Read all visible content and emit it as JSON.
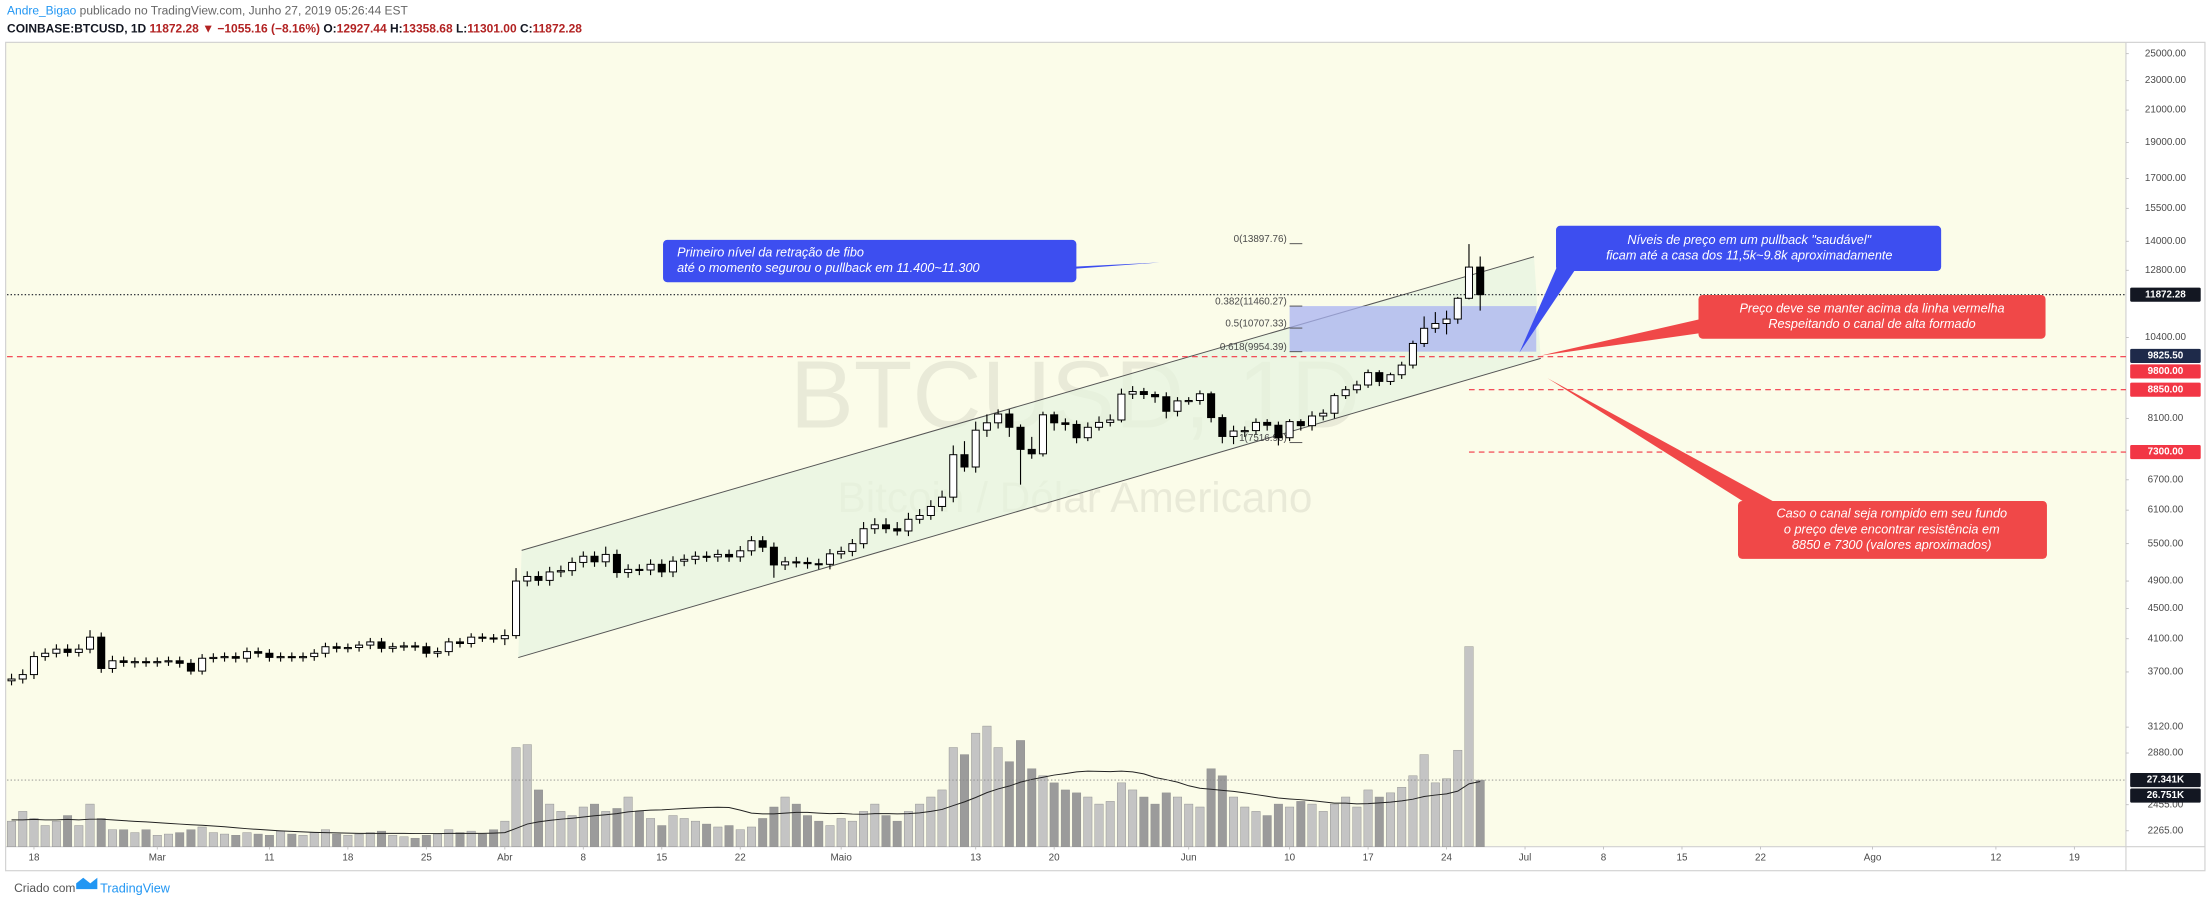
{
  "header": {
    "author": "Andre_Bigao",
    "published": "publicado no TradingView.com, Junho 27, 2019 05:26:44 EST",
    "symbol": "COINBASE:BTCUSD, 1D",
    "last": "11872.28",
    "change": "▼ −1055.16 (−8.16%)",
    "ohlc": [
      {
        "label": "O:",
        "value": "12927.44"
      },
      {
        "label": "H:",
        "value": "13358.68"
      },
      {
        "label": "L:",
        "value": "11301.00"
      },
      {
        "label": "C:",
        "value": "11872.28"
      }
    ]
  },
  "footer": {
    "created_with": "Criado com",
    "brand": "TradingView"
  },
  "chart_data": {
    "type": "candlestick",
    "log_scale": true,
    "grid": false,
    "watermark": {
      "title": "BTCUSD, 1D",
      "subtitle": "Bitcoin / Dólar Americano"
    },
    "up_color": "#ffffff",
    "down_color": "#000000",
    "outline_color": "#000000",
    "xlim": [
      -0.4,
      188.6
    ],
    "xticks": [
      {
        "value": 2,
        "label": "18"
      },
      {
        "value": 13,
        "label": "Mar"
      },
      {
        "value": 23,
        "label": "11"
      },
      {
        "value": 30,
        "label": "18"
      },
      {
        "value": 37,
        "label": "25"
      },
      {
        "value": 44,
        "label": "Abr"
      },
      {
        "value": 51,
        "label": "8"
      },
      {
        "value": 58,
        "label": "15"
      },
      {
        "value": 65,
        "label": "22"
      },
      {
        "value": 74,
        "label": "Maio"
      },
      {
        "value": 86,
        "label": "13"
      },
      {
        "value": 93,
        "label": "20"
      },
      {
        "value": 105,
        "label": "Jun"
      },
      {
        "value": 114,
        "label": "10"
      },
      {
        "value": 121,
        "label": "17"
      },
      {
        "value": 128,
        "label": "24"
      },
      {
        "value": 135,
        "label": "Jul"
      },
      {
        "value": 142,
        "label": "8"
      },
      {
        "value": 149,
        "label": "15"
      },
      {
        "value": 156,
        "label": "22"
      },
      {
        "value": 166,
        "label": "Ago"
      },
      {
        "value": 177,
        "label": "12"
      },
      {
        "value": 184,
        "label": "19"
      }
    ],
    "ylim": [
      2156,
      25890
    ],
    "yticks": [
      {
        "value": 25000,
        "label": "25000.00"
      },
      {
        "value": 23000,
        "label": "23000.00"
      },
      {
        "value": 21000,
        "label": "21000.00"
      },
      {
        "value": 19000,
        "label": "19000.00"
      },
      {
        "value": 17000,
        "label": "17000.00"
      },
      {
        "value": 15500,
        "label": "15500.00"
      },
      {
        "value": 14000,
        "label": "14000.00"
      },
      {
        "value": 12800,
        "label": "12800.00"
      },
      {
        "value": 10400,
        "label": "10400.00"
      },
      {
        "value": 8100,
        "label": "8100.00"
      },
      {
        "value": 6700,
        "label": "6700.00"
      },
      {
        "value": 6100,
        "label": "6100.00"
      },
      {
        "value": 5500,
        "label": "5500.00"
      },
      {
        "value": 4900,
        "label": "4900.00"
      },
      {
        "value": 4500,
        "label": "4500.00"
      },
      {
        "value": 4100,
        "label": "4100.00"
      },
      {
        "value": 3700,
        "label": "3700.00"
      },
      {
        "value": 3120,
        "label": "3120.00"
      },
      {
        "value": 2880,
        "label": "2880.00"
      },
      {
        "value": 2455,
        "label": "2455.00"
      },
      {
        "value": 2265,
        "label": "2265.00"
      }
    ],
    "open": [
      3600,
      3620,
      3670,
      3880,
      3920,
      3970,
      3930,
      3970,
      4120,
      3740,
      3830,
      3810,
      3820,
      3810,
      3820,
      3830,
      3800,
      3710,
      3860,
      3870,
      3880,
      3860,
      3940,
      3920,
      3870,
      3880,
      3870,
      3880,
      3920,
      4000,
      3980,
      3990,
      4020,
      4060,
      3980,
      4000,
      4010,
      4000,
      3920,
      3940,
      4060,
      4040,
      4120,
      4110,
      4100,
      4140,
      4900,
      4970,
      4910,
      5040,
      5060,
      5190,
      5290,
      5200,
      5320,
      5030,
      5080,
      5070,
      5160,
      5040,
      5210,
      5240,
      5290,
      5280,
      5320,
      5280,
      5380,
      5550,
      5440,
      5150,
      5200,
      5190,
      5170,
      5160,
      5330,
      5370,
      5500,
      5760,
      5830,
      5760,
      5720,
      5930,
      6000,
      6170,
      6350,
      7240,
      6970,
      7810,
      7990,
      8210,
      7880,
      7360,
      7260,
      8190,
      7990,
      7950,
      7630,
      7880,
      8000,
      8060,
      8730,
      8800,
      8720,
      8660,
      8280,
      8550,
      8560,
      8740,
      8120,
      7660,
      7790,
      7800,
      8000,
      7930,
      7630,
      8020,
      7920,
      8160,
      8230,
      8690,
      8850,
      8980,
      9330,
      9080,
      9270,
      9550,
      10210,
      10700,
      10860,
      11010,
      11740,
      12927.44
    ],
    "high": [
      3680,
      3730,
      3940,
      3980,
      4030,
      4030,
      4030,
      4210,
      4180,
      3890,
      3880,
      3870,
      3870,
      3870,
      3880,
      3880,
      3850,
      3910,
      3920,
      3930,
      3930,
      3990,
      3990,
      3970,
      3930,
      3930,
      3930,
      3970,
      4050,
      4050,
      4040,
      4070,
      4110,
      4110,
      4050,
      4060,
      4060,
      4050,
      3990,
      4110,
      4110,
      4170,
      4170,
      4160,
      4220,
      5100,
      5050,
      5050,
      5120,
      5140,
      5270,
      5370,
      5370,
      5450,
      5400,
      5160,
      5160,
      5240,
      5240,
      5290,
      5320,
      5370,
      5370,
      5400,
      5400,
      5460,
      5630,
      5630,
      5520,
      5280,
      5280,
      5270,
      5250,
      5410,
      5450,
      5580,
      5880,
      5950,
      5950,
      5880,
      6050,
      6120,
      6290,
      6480,
      7450,
      7550,
      8020,
      8200,
      8330,
      8330,
      7950,
      7650,
      8270,
      8270,
      8100,
      8050,
      8000,
      8150,
      8200,
      8880,
      8950,
      8900,
      8800,
      8780,
      8650,
      8650,
      8830,
      8800,
      8200,
      7920,
      7900,
      8100,
      8080,
      8020,
      8080,
      8080,
      8280,
      8330,
      8750,
      8950,
      9100,
      9420,
      9400,
      9330,
      9650,
      10300,
      11100,
      11250,
      11300,
      11790,
      13880,
      13358.68
    ],
    "low": [
      3550,
      3570,
      3620,
      3830,
      3870,
      3880,
      3880,
      3920,
      3690,
      3690,
      3760,
      3750,
      3760,
      3760,
      3770,
      3750,
      3670,
      3670,
      3810,
      3820,
      3810,
      3810,
      3870,
      3820,
      3820,
      3820,
      3820,
      3830,
      3870,
      3930,
      3930,
      3940,
      3970,
      3930,
      3930,
      3950,
      3950,
      3870,
      3870,
      3890,
      3990,
      3990,
      4060,
      4050,
      4020,
      4100,
      4820,
      4830,
      4830,
      4960,
      4980,
      5110,
      5120,
      5120,
      4950,
      4950,
      4990,
      4990,
      4960,
      4960,
      5130,
      5160,
      5200,
      5200,
      5200,
      5200,
      5300,
      5360,
      4950,
      5070,
      5110,
      5090,
      5080,
      5080,
      5250,
      5290,
      5420,
      5670,
      5680,
      5640,
      5630,
      5850,
      5920,
      6080,
      6250,
      6870,
      6850,
      7650,
      7850,
      7650,
      6600,
      7150,
      7200,
      7800,
      7800,
      7500,
      7550,
      7800,
      7900,
      8000,
      8600,
      8600,
      8500,
      8100,
      8150,
      8450,
      8450,
      8000,
      7500,
      7480,
      7650,
      7700,
      7800,
      7450,
      7550,
      7800,
      7800,
      8050,
      8100,
      8600,
      8750,
      8900,
      8950,
      8980,
      9150,
      9450,
      10100,
      10550,
      10500,
      10850,
      11700,
      11301
    ],
    "close": [
      3620,
      3670,
      3880,
      3920,
      3970,
      3930,
      3970,
      4120,
      3740,
      3830,
      3810,
      3820,
      3810,
      3820,
      3830,
      3800,
      3710,
      3860,
      3870,
      3880,
      3860,
      3940,
      3920,
      3870,
      3880,
      3870,
      3880,
      3920,
      4000,
      3980,
      3990,
      4020,
      4060,
      3980,
      4000,
      4010,
      4000,
      3920,
      3940,
      4060,
      4040,
      4120,
      4110,
      4100,
      4140,
      4900,
      4970,
      4910,
      5040,
      5060,
      5190,
      5290,
      5200,
      5320,
      5030,
      5080,
      5070,
      5160,
      5040,
      5210,
      5240,
      5290,
      5280,
      5320,
      5280,
      5380,
      5550,
      5440,
      5150,
      5200,
      5190,
      5170,
      5160,
      5330,
      5370,
      5500,
      5760,
      5830,
      5760,
      5720,
      5930,
      6000,
      6170,
      6350,
      7240,
      6970,
      7810,
      7990,
      8210,
      7880,
      7360,
      7260,
      8190,
      7990,
      7950,
      7630,
      7880,
      8000,
      8060,
      8730,
      8800,
      8720,
      8660,
      8280,
      8550,
      8560,
      8740,
      8120,
      7660,
      7790,
      7800,
      8000,
      7930,
      7630,
      8020,
      7920,
      8160,
      8230,
      8690,
      8850,
      8980,
      9330,
      9080,
      9270,
      9550,
      10210,
      10700,
      10860,
      11010,
      11740,
      12927.44,
      11872.28
    ],
    "volume": {
      "ylim": [
        0,
        330000
      ],
      "up_color": "#c4c4c4",
      "down_color": "#9b9b9b",
      "values": [
        10500,
        14500,
        11600,
        8700,
        10500,
        12800,
        8700,
        17500,
        11600,
        7000,
        7000,
        5800,
        7000,
        4700,
        5200,
        5800,
        7000,
        8100,
        5800,
        5200,
        4700,
        5800,
        5200,
        4700,
        6400,
        5200,
        4700,
        5800,
        7000,
        5200,
        4700,
        5200,
        5800,
        6400,
        4700,
        4100,
        3500,
        4700,
        5200,
        7000,
        5800,
        6400,
        5200,
        7000,
        10500,
        40700,
        41900,
        23300,
        17500,
        14500,
        12800,
        16300,
        17500,
        14500,
        15700,
        20400,
        14500,
        11600,
        8700,
        12800,
        11600,
        10500,
        9300,
        8100,
        8700,
        7000,
        8100,
        11600,
        16300,
        20400,
        17500,
        12800,
        10500,
        8700,
        11600,
        10500,
        14500,
        17500,
        12800,
        10500,
        14500,
        17500,
        20400,
        23300,
        40700,
        37800,
        46600,
        49500,
        40700,
        34900,
        43600,
        32000,
        29100,
        26200,
        23300,
        22100,
        20400,
        17500,
        18600,
        26200,
        23300,
        20400,
        17500,
        22100,
        20400,
        17500,
        16300,
        32000,
        29100,
        20400,
        16300,
        14500,
        12800,
        17500,
        16300,
        18600,
        17500,
        14500,
        17500,
        20400,
        16300,
        23300,
        20400,
        22100,
        24400,
        29100,
        37800,
        26200,
        27900,
        39600,
        82100,
        27341
      ],
      "ma": {
        "color": "#222222",
        "values": [
          11000,
          11000,
          11200,
          11000,
          11000,
          11200,
          11000,
          11300,
          11300,
          11000,
          10700,
          10400,
          10200,
          9900,
          9600,
          9300,
          9000,
          8800,
          8500,
          8200,
          7800,
          7400,
          7100,
          6800,
          6500,
          6300,
          6100,
          5900,
          5800,
          5700,
          5600,
          5500,
          5500,
          5500,
          5500,
          5500,
          5400,
          5400,
          5400,
          5500,
          5500,
          5500,
          5500,
          5600,
          5800,
          7500,
          9300,
          10200,
          10800,
          11300,
          11700,
          12200,
          12700,
          13100,
          13600,
          14300,
          14700,
          15000,
          15100,
          15400,
          15700,
          15900,
          16100,
          16200,
          16100,
          15000,
          13800,
          13500,
          13500,
          13800,
          14100,
          14100,
          13800,
          13600,
          13700,
          13400,
          13300,
          13600,
          13600,
          13500,
          13600,
          13900,
          14500,
          15300,
          16900,
          18400,
          20200,
          22200,
          23700,
          24900,
          26500,
          27600,
          28500,
          29400,
          30000,
          30700,
          31000,
          30900,
          30800,
          31000,
          30700,
          29900,
          28400,
          27500,
          26500,
          25000,
          24000,
          23600,
          23100,
          22700,
          22100,
          21400,
          20700,
          20000,
          19600,
          19300,
          18900,
          18400,
          17900,
          17900,
          17600,
          17700,
          18000,
          18300,
          18800,
          19500,
          20600,
          21200,
          21700,
          22800,
          25800,
          26751
        ]
      },
      "labels": [
        {
          "value": 27341,
          "label": "27.341K",
          "color": "#131722",
          "style": "dotted"
        },
        {
          "value": 26751,
          "label": "26.751K",
          "color": "#131722"
        }
      ]
    },
    "channel": {
      "color": "#555555",
      "fill": "#e6f3df",
      "upper": {
        "x": [
          45.5,
          135.8
        ],
        "y": [
          5387,
          13348
        ]
      },
      "lower": {
        "x": [
          45.2,
          136.4
        ],
        "y": [
          3868,
          9750
        ]
      }
    },
    "fib": {
      "x": [
        114,
        136
      ],
      "color": "#555555",
      "fill": "#aab3f2",
      "levels": [
        {
          "label": "0(13897.76)",
          "value": 13897.76
        },
        {
          "label": "0.382(11460.27)",
          "value": 11460.27
        },
        {
          "label": "0.5(10707.33)",
          "value": 10707.33
        },
        {
          "label": "0.618(9954.39)",
          "value": 9954.39
        },
        {
          "label": "1(7516.90)",
          "value": 7516.9
        }
      ]
    },
    "price_lines": [
      {
        "value": 11872.28,
        "label": "11872.28",
        "color": "#131722",
        "style": "dotted"
      },
      {
        "value": 9800,
        "label": "9800.00",
        "color": "#f23645",
        "style": "dashed"
      },
      {
        "value": 9825.5,
        "label": "9825.50",
        "color": "#1e2a4a"
      },
      {
        "value": 8850,
        "label": "8850.00",
        "color": "#f23645",
        "style": "dashed",
        "from": 130
      },
      {
        "value": 7300,
        "label": "7300.00",
        "color": "#f23645",
        "style": "dashed",
        "from": 130
      }
    ],
    "annotations": [
      {
        "color": "#3d4ef0",
        "lines": [
          "Primeiro nível da retração de fibo",
          "até o momento segurou o pullback em 11.400~11.300"
        ]
      },
      {
        "color": "#3d4ef0",
        "lines": [
          "Níveis de preço em um pullback \"saudável\"",
          "ficam até a casa dos 11,5k~9.8k aproximadamente"
        ]
      },
      {
        "color": "#f04848",
        "lines": [
          "Preço deve se manter acima da linha vermelha",
          "Respeitando o canal de alta formado"
        ]
      },
      {
        "color": "#f04848",
        "lines": [
          "Caso o canal seja rompido em seu fundo",
          "o preço deve encontrar resistência em",
          "8850 e 7300 (valores aproximados)"
        ]
      }
    ]
  }
}
